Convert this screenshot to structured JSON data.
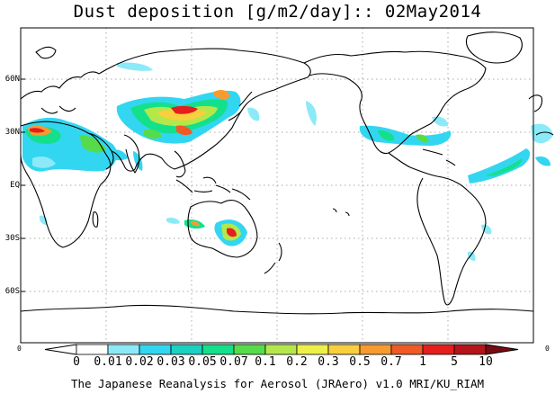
{
  "title": "Dust deposition [g/m2/day]:: 02May2014",
  "y_axis_labels": [
    "60N",
    "30N",
    "EQ",
    "30S",
    "60S"
  ],
  "frame_edge_labels": {
    "left": "0",
    "right": "0"
  },
  "colorbar": {
    "tick_labels": [
      "0",
      "0.01",
      "0.02",
      "0.03",
      "0.05",
      "0.07",
      "0.1",
      "0.2",
      "0.3",
      "0.5",
      "0.7",
      "1",
      "5",
      "10"
    ],
    "colors": [
      "#ffffff",
      "#8ceaf8",
      "#33d6f0",
      "#1ad1c2",
      "#14e08c",
      "#56dc4a",
      "#b4e84a",
      "#eef04a",
      "#f8cf3c",
      "#f89a2e",
      "#f05a24",
      "#e51e1e",
      "#b4141a",
      "#7a0a12"
    ]
  },
  "credit": "The Japanese Reanalysis for Aerosol (JRAero) v1.0 MRI/KU_RIAM"
}
